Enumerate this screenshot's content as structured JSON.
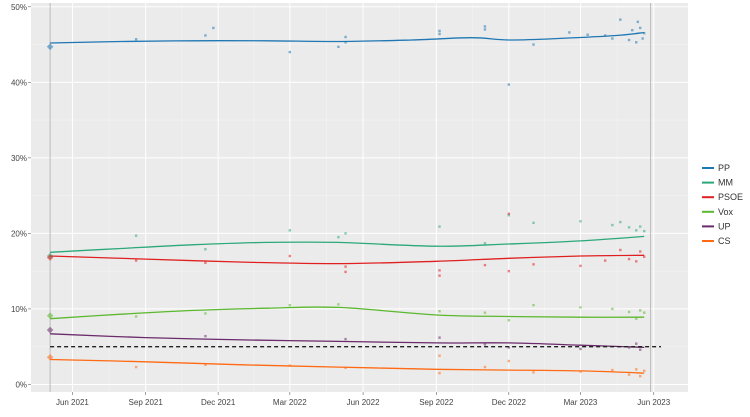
{
  "chart_data": {
    "type": "line",
    "y_tick_labels": [
      "0%",
      "10%",
      "20%",
      "30%",
      "40%",
      "50%"
    ],
    "y_ticks": [
      0,
      10,
      20,
      30,
      40,
      50
    ],
    "ylim": [
      -1,
      50.5
    ],
    "x_tick_labels": [
      "Jun 2021",
      "Sep 2021",
      "Dec 2021",
      "Mar 2022",
      "Jun 2022",
      "Sep 2022",
      "Dec 2022",
      "Mar 2023",
      "Jun 2023"
    ],
    "x_ticks": [
      "2021-06-01",
      "2021-09-01",
      "2021-12-01",
      "2022-03-01",
      "2022-06-01",
      "2022-09-01",
      "2022-12-01",
      "2023-03-01",
      "2023-06-01"
    ],
    "xlim": [
      "2021-04-10",
      "2023-07-14"
    ],
    "election_dates": [
      "2021-05-04",
      "2023-05-28"
    ],
    "threshold": 5,
    "grid": true,
    "legend_position": "right",
    "background": "#ebebeb",
    "series": [
      {
        "name": "PP",
        "color": "#1f77b4",
        "trend": [
          [
            "2021-05-04",
            45.2
          ],
          [
            "2021-08-01",
            45.4
          ],
          [
            "2021-11-01",
            45.5
          ],
          [
            "2022-02-01",
            45.5
          ],
          [
            "2022-05-01",
            45.4
          ],
          [
            "2022-08-01",
            45.6
          ],
          [
            "2022-10-15",
            45.9
          ],
          [
            "2022-12-01",
            45.6
          ],
          [
            "2023-02-01",
            45.8
          ],
          [
            "2023-04-15",
            46.2
          ],
          [
            "2023-05-20",
            46.6
          ]
        ],
        "election_result": 44.7,
        "polls": [
          [
            "2021-08-20",
            45.7
          ],
          [
            "2021-11-15",
            46.2
          ],
          [
            "2021-11-25",
            47.2
          ],
          [
            "2022-03-01",
            44.0
          ],
          [
            "2022-05-01",
            44.7
          ],
          [
            "2022-05-10",
            46.0
          ],
          [
            "2022-05-10",
            45.3
          ],
          [
            "2022-09-05",
            46.8
          ],
          [
            "2022-09-05",
            46.4
          ],
          [
            "2022-11-01",
            47.0
          ],
          [
            "2022-11-01",
            47.4
          ],
          [
            "2022-12-01",
            39.7
          ],
          [
            "2023-01-01",
            45.0
          ],
          [
            "2023-02-15",
            46.6
          ],
          [
            "2023-03-10",
            46.3
          ],
          [
            "2023-04-01",
            46.2
          ],
          [
            "2023-04-10",
            45.8
          ],
          [
            "2023-04-20",
            48.3
          ],
          [
            "2023-05-01",
            45.6
          ],
          [
            "2023-05-05",
            46.9
          ],
          [
            "2023-05-10",
            45.3
          ],
          [
            "2023-05-12",
            48.0
          ],
          [
            "2023-05-15",
            47.2
          ],
          [
            "2023-05-18",
            45.8
          ],
          [
            "2023-05-20",
            46.5
          ]
        ]
      },
      {
        "name": "MM",
        "color": "#2ca87a",
        "trend": [
          [
            "2021-05-04",
            17.5
          ],
          [
            "2021-08-01",
            18.0
          ],
          [
            "2021-11-01",
            18.5
          ],
          [
            "2022-02-01",
            18.8
          ],
          [
            "2022-05-01",
            18.8
          ],
          [
            "2022-09-01",
            18.3
          ],
          [
            "2022-12-01",
            18.6
          ],
          [
            "2023-03-01",
            19.0
          ],
          [
            "2023-05-20",
            19.6
          ]
        ],
        "election_result": 17.0,
        "polls": [
          [
            "2021-08-20",
            19.7
          ],
          [
            "2021-11-15",
            17.9
          ],
          [
            "2022-03-01",
            20.4
          ],
          [
            "2022-05-01",
            19.5
          ],
          [
            "2022-05-10",
            20.0
          ],
          [
            "2022-09-05",
            20.9
          ],
          [
            "2022-11-01",
            18.7
          ],
          [
            "2022-12-01",
            22.4
          ],
          [
            "2023-01-01",
            21.4
          ],
          [
            "2023-03-01",
            21.6
          ],
          [
            "2023-04-10",
            21.1
          ],
          [
            "2023-04-20",
            21.5
          ],
          [
            "2023-05-01",
            20.8
          ],
          [
            "2023-05-10",
            20.4
          ],
          [
            "2023-05-15",
            20.9
          ],
          [
            "2023-05-20",
            20.3
          ]
        ]
      },
      {
        "name": "PSOE",
        "color": "#e02020",
        "trend": [
          [
            "2021-05-04",
            17.0
          ],
          [
            "2021-09-01",
            16.6
          ],
          [
            "2022-01-01",
            16.2
          ],
          [
            "2022-05-01",
            16.0
          ],
          [
            "2022-09-01",
            16.3
          ],
          [
            "2022-12-01",
            16.7
          ],
          [
            "2023-03-01",
            17.0
          ],
          [
            "2023-05-20",
            17.1
          ]
        ],
        "election_result": 16.8,
        "polls": [
          [
            "2021-08-20",
            16.4
          ],
          [
            "2021-11-15",
            16.1
          ],
          [
            "2022-03-01",
            17.0
          ],
          [
            "2022-05-10",
            14.9
          ],
          [
            "2022-05-10",
            15.6
          ],
          [
            "2022-09-05",
            15.1
          ],
          [
            "2022-09-05",
            14.4
          ],
          [
            "2022-11-01",
            15.8
          ],
          [
            "2022-12-01",
            22.6
          ],
          [
            "2022-12-01",
            15.0
          ],
          [
            "2023-01-01",
            15.9
          ],
          [
            "2023-03-01",
            15.7
          ],
          [
            "2023-04-01",
            16.4
          ],
          [
            "2023-04-20",
            17.8
          ],
          [
            "2023-05-01",
            16.6
          ],
          [
            "2023-05-10",
            16.3
          ],
          [
            "2023-05-15",
            17.6
          ],
          [
            "2023-05-20",
            16.9
          ]
        ]
      },
      {
        "name": "Vox",
        "color": "#5cb82e",
        "trend": [
          [
            "2021-05-04",
            8.7
          ],
          [
            "2021-08-01",
            9.3
          ],
          [
            "2021-11-01",
            9.8
          ],
          [
            "2022-02-01",
            10.1
          ],
          [
            "2022-05-01",
            10.2
          ],
          [
            "2022-09-01",
            9.2
          ],
          [
            "2022-12-01",
            9.0
          ],
          [
            "2023-03-01",
            8.9
          ],
          [
            "2023-05-20",
            8.9
          ]
        ],
        "election_result": 9.1,
        "polls": [
          [
            "2021-08-20",
            9.0
          ],
          [
            "2021-11-15",
            9.4
          ],
          [
            "2022-03-01",
            10.5
          ],
          [
            "2022-05-01",
            10.6
          ],
          [
            "2022-09-05",
            9.7
          ],
          [
            "2022-11-01",
            9.5
          ],
          [
            "2022-12-01",
            8.5
          ],
          [
            "2023-01-01",
            10.5
          ],
          [
            "2023-03-01",
            10.2
          ],
          [
            "2023-04-10",
            10.0
          ],
          [
            "2023-05-01",
            9.6
          ],
          [
            "2023-05-10",
            8.7
          ],
          [
            "2023-05-15",
            9.8
          ],
          [
            "2023-05-20",
            9.5
          ]
        ]
      },
      {
        "name": "UP",
        "color": "#6b2a6b",
        "trend": [
          [
            "2021-05-04",
            6.7
          ],
          [
            "2021-09-01",
            6.2
          ],
          [
            "2022-01-01",
            5.9
          ],
          [
            "2022-05-01",
            5.7
          ],
          [
            "2022-09-01",
            5.5
          ],
          [
            "2022-12-01",
            5.5
          ],
          [
            "2023-03-01",
            5.2
          ],
          [
            "2023-05-20",
            4.9
          ]
        ],
        "election_result": 7.2,
        "polls": [
          [
            "2021-11-15",
            6.4
          ],
          [
            "2022-05-10",
            6.0
          ],
          [
            "2022-09-05",
            6.2
          ],
          [
            "2022-11-01",
            5.3
          ],
          [
            "2022-12-01",
            4.9
          ],
          [
            "2023-03-01",
            4.7
          ],
          [
            "2023-05-01",
            4.9
          ],
          [
            "2023-05-10",
            5.4
          ],
          [
            "2023-05-15",
            4.6
          ]
        ]
      },
      {
        "name": "CS",
        "color": "#ff6a13",
        "trend": [
          [
            "2021-05-04",
            3.3
          ],
          [
            "2021-09-01",
            3.0
          ],
          [
            "2022-01-01",
            2.6
          ],
          [
            "2022-05-01",
            2.3
          ],
          [
            "2022-09-01",
            2.0
          ],
          [
            "2022-12-01",
            1.9
          ],
          [
            "2023-03-01",
            1.8
          ],
          [
            "2023-05-20",
            1.5
          ]
        ],
        "election_result": 3.6,
        "polls": [
          [
            "2021-08-20",
            2.3
          ],
          [
            "2021-11-15",
            2.6
          ],
          [
            "2022-03-01",
            2.5
          ],
          [
            "2022-05-10",
            2.2
          ],
          [
            "2022-09-05",
            1.5
          ],
          [
            "2022-09-05",
            3.8
          ],
          [
            "2022-11-01",
            2.3
          ],
          [
            "2022-12-01",
            3.1
          ],
          [
            "2023-01-01",
            1.6
          ],
          [
            "2023-03-01",
            1.7
          ],
          [
            "2023-04-10",
            1.9
          ],
          [
            "2023-05-01",
            1.3
          ],
          [
            "2023-05-10",
            2.0
          ],
          [
            "2023-05-15",
            1.1
          ],
          [
            "2023-05-20",
            1.8
          ]
        ]
      }
    ]
  }
}
